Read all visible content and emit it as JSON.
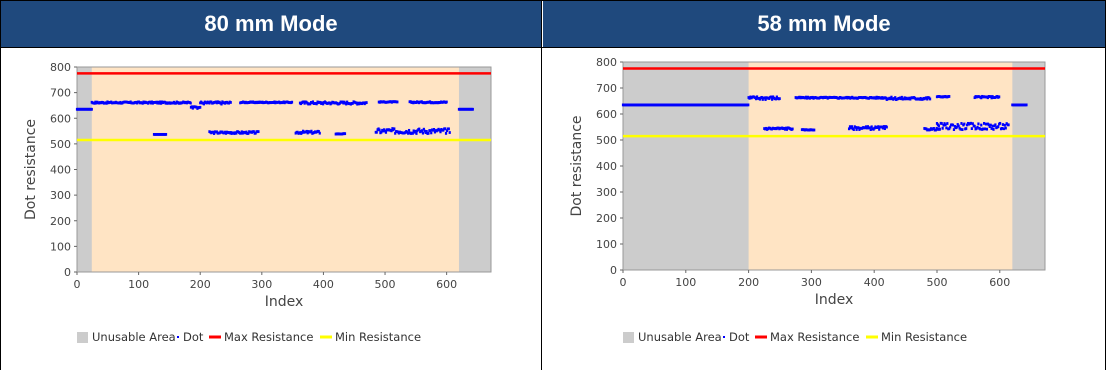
{
  "headers": {
    "left": "80 mm Mode",
    "right": "58 mm Mode"
  },
  "colors": {
    "header_bg": "#1f497d",
    "unusable": "#cccccc",
    "usable": "#ffe4c4",
    "dot": "#0000ff",
    "max": "#ff0000",
    "min": "#ffff00"
  },
  "chart_data": [
    {
      "type": "scatter",
      "title": "80 mm Mode",
      "xlabel": "Index",
      "ylabel": "Dot resistance",
      "xlim": [
        0,
        672
      ],
      "ylim": [
        0,
        800
      ],
      "xticks": [
        0,
        100,
        200,
        300,
        400,
        500,
        600
      ],
      "yticks": [
        0,
        100,
        200,
        300,
        400,
        500,
        600,
        700,
        800
      ],
      "unusable_ranges": [
        [
          0,
          24
        ],
        [
          620,
          672
        ]
      ],
      "max_resistance": 775,
      "min_resistance": 515,
      "legend": [
        "Unusable Area",
        "Dot",
        "Max Resistance",
        "Min Resistance"
      ],
      "dot_series": [
        {
          "x": [
            0,
            24
          ],
          "y": [
            635,
            635
          ]
        },
        {
          "x": [
            24,
            185
          ],
          "y": [
            658,
            664
          ]
        },
        {
          "x": [
            185,
            200
          ],
          "y": [
            645,
            638
          ]
        },
        {
          "x": [
            200,
            250
          ],
          "y": [
            655,
            665
          ]
        },
        {
          "x": [
            265,
            350
          ],
          "y": [
            660,
            664
          ]
        },
        {
          "x": [
            362,
            470
          ],
          "y": [
            655,
            665
          ]
        },
        {
          "x": [
            490,
            520
          ],
          "y": [
            662,
            665
          ]
        },
        {
          "x": [
            540,
            600
          ],
          "y": [
            660,
            665
          ]
        },
        {
          "x": [
            620,
            643
          ],
          "y": [
            635,
            635
          ]
        },
        {
          "x": [
            125,
            145
          ],
          "y": [
            537,
            537
          ]
        },
        {
          "x": [
            215,
            295
          ],
          "y": [
            540,
            548
          ]
        },
        {
          "x": [
            355,
            395
          ],
          "y": [
            540,
            550
          ]
        },
        {
          "x": [
            420,
            435
          ],
          "y": [
            538,
            540
          ]
        },
        {
          "x": [
            485,
            605
          ],
          "y": [
            540,
            560
          ]
        }
      ]
    },
    {
      "type": "scatter",
      "title": "58 mm Mode",
      "xlabel": "Index",
      "ylabel": "Dot resistance",
      "xlim": [
        0,
        672
      ],
      "ylim": [
        0,
        800
      ],
      "xticks": [
        0,
        100,
        200,
        300,
        400,
        500,
        600
      ],
      "yticks": [
        0,
        100,
        200,
        300,
        400,
        500,
        600,
        700,
        800
      ],
      "unusable_ranges": [
        [
          0,
          200
        ],
        [
          620,
          672
        ]
      ],
      "max_resistance": 775,
      "min_resistance": 515,
      "legend": [
        "Unusable Area",
        "Dot",
        "Max Resistance",
        "Min Resistance"
      ],
      "dot_series": [
        {
          "x": [
            0,
            200
          ],
          "y": [
            635,
            635
          ]
        },
        {
          "x": [
            200,
            250
          ],
          "y": [
            655,
            668
          ]
        },
        {
          "x": [
            275,
            420
          ],
          "y": [
            660,
            665
          ]
        },
        {
          "x": [
            420,
            490
          ],
          "y": [
            655,
            665
          ]
        },
        {
          "x": [
            500,
            520
          ],
          "y": [
            665,
            668
          ]
        },
        {
          "x": [
            560,
            600
          ],
          "y": [
            662,
            668
          ]
        },
        {
          "x": [
            620,
            643
          ],
          "y": [
            635,
            635
          ]
        },
        {
          "x": [
            225,
            270
          ],
          "y": [
            540,
            548
          ]
        },
        {
          "x": [
            285,
            305
          ],
          "y": [
            538,
            540
          ]
        },
        {
          "x": [
            360,
            420
          ],
          "y": [
            540,
            552
          ]
        },
        {
          "x": [
            480,
            505
          ],
          "y": [
            538,
            545
          ]
        },
        {
          "x": [
            500,
            615
          ],
          "y": [
            540,
            565
          ]
        }
      ]
    }
  ]
}
